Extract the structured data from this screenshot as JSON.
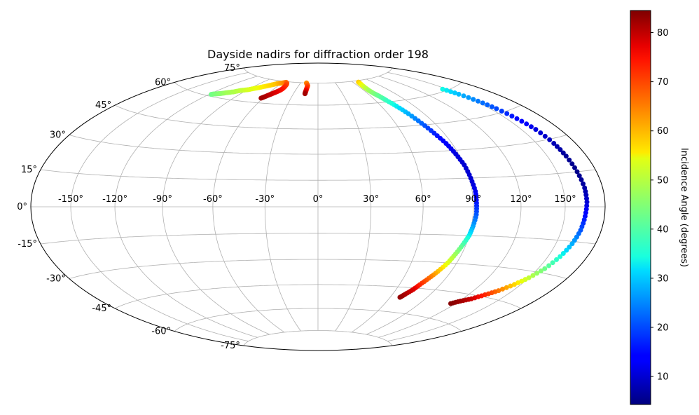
{
  "chart_data": {
    "type": "scatter",
    "projection": "hammer",
    "title": "Dayside nadirs for diffraction order 198",
    "xlabel": "",
    "ylabel": "",
    "grid": true,
    "longitude_ticks": [
      -150,
      -120,
      -90,
      -60,
      -30,
      0,
      30,
      60,
      90,
      120,
      150
    ],
    "longitude_tick_labels": [
      "-150°",
      "-120°",
      "-90°",
      "-60°",
      "-30°",
      "0°",
      "30°",
      "60°",
      "90°",
      "120°",
      "150°"
    ],
    "latitude_ticks": [
      -75,
      -60,
      -45,
      -30,
      -15,
      0,
      15,
      30,
      45,
      60,
      75
    ],
    "latitude_tick_labels": [
      "-75°",
      "-60°",
      "-45°",
      "-30°",
      "-15°",
      "0°",
      "15°",
      "30°",
      "45°",
      "60°",
      "75°"
    ],
    "colorbar": {
      "label": "Incidence Angle (degrees)",
      "colormap": "jet",
      "range": [
        4.3,
        84.5
      ],
      "ticks": [
        10,
        20,
        30,
        40,
        50,
        60,
        70,
        80
      ],
      "tick_labels": [
        "10",
        "20",
        "30",
        "40",
        "50",
        "60",
        "70",
        "80"
      ]
    },
    "series": [
      {
        "points": [
          [
            -118,
            61,
            43
          ],
          [
            -116,
            61.5,
            44
          ],
          [
            -113,
            62,
            45
          ],
          [
            -110,
            62.5,
            46
          ],
          [
            -106,
            63.5,
            48
          ],
          [
            -101,
            64.5,
            49
          ],
          [
            -96,
            66,
            51
          ],
          [
            -90,
            67,
            53
          ],
          [
            -84,
            68.5,
            55
          ],
          [
            -78,
            70,
            57
          ],
          [
            -72,
            71.5,
            59
          ],
          [
            -66,
            73,
            61
          ],
          [
            -62,
            73.5,
            63
          ],
          [
            -58,
            74,
            65
          ],
          [
            -55,
            74.5,
            67
          ],
          [
            -52,
            74,
            69
          ],
          [
            -50,
            73,
            71
          ],
          [
            -49,
            71.5,
            73
          ],
          [
            -49,
            70,
            75
          ],
          [
            -50,
            69,
            76
          ],
          [
            -52,
            68,
            77
          ],
          [
            -54,
            67,
            78
          ],
          [
            -56,
            66,
            79
          ],
          [
            -58,
            65,
            80
          ],
          [
            -60,
            64,
            81
          ],
          [
            -62,
            63,
            82
          ]
        ]
      },
      {
        "points": [
          [
            -20,
            75,
            65
          ],
          [
            -19,
            74.5,
            66
          ],
          [
            -18,
            74,
            67
          ],
          [
            -17,
            73.5,
            68
          ],
          [
            -16,
            73,
            70
          ],
          [
            -16,
            72,
            72
          ],
          [
            -16,
            71,
            74
          ],
          [
            -16,
            70,
            76
          ],
          [
            -16,
            69,
            78
          ],
          [
            -16,
            68,
            80
          ],
          [
            -16,
            67.5,
            82
          ]
        ]
      },
      {
        "points": [
          [
            69,
            74,
            60
          ],
          [
            67,
            72,
            56
          ],
          [
            66,
            70,
            52
          ],
          [
            66,
            68,
            48
          ],
          [
            67,
            66,
            45
          ],
          [
            69,
            64,
            42
          ],
          [
            71,
            61,
            38
          ],
          [
            74,
            57,
            33
          ],
          [
            77,
            52,
            28
          ],
          [
            80,
            46,
            22
          ],
          [
            83,
            40,
            17
          ],
          [
            86,
            34,
            13
          ],
          [
            88,
            28,
            11
          ],
          [
            90,
            22,
            10
          ],
          [
            91,
            15,
            10
          ],
          [
            92,
            8,
            12
          ],
          [
            92,
            2,
            16
          ],
          [
            92,
            -4,
            21
          ],
          [
            91,
            -10,
            27
          ],
          [
            90,
            -15,
            33
          ],
          [
            88,
            -20,
            40
          ],
          [
            86,
            -25,
            47
          ],
          [
            84,
            -30,
            54
          ],
          [
            81,
            -35,
            61
          ],
          [
            78,
            -39,
            68
          ],
          [
            75,
            -43,
            74
          ],
          [
            73,
            -46,
            78
          ],
          [
            70,
            -49,
            81
          ],
          [
            68,
            -51,
            83
          ]
        ]
      },
      {
        "points": [
          [
            146,
            61,
            34
          ],
          [
            149,
            57,
            29
          ],
          [
            152,
            52,
            24
          ],
          [
            155,
            47,
            20
          ],
          [
            158,
            41,
            15
          ],
          [
            161,
            35,
            11
          ],
          [
            163,
            28,
            8
          ],
          [
            164,
            22,
            6
          ],
          [
            165,
            15,
            5
          ],
          [
            166,
            8,
            7
          ],
          [
            166,
            2,
            10
          ],
          [
            165,
            -4,
            15
          ],
          [
            164,
            -10,
            21
          ],
          [
            162,
            -16,
            28
          ],
          [
            159,
            -22,
            35
          ],
          [
            155,
            -28,
            43
          ],
          [
            150,
            -33,
            51
          ],
          [
            145,
            -37,
            59
          ],
          [
            139,
            -41,
            67
          ],
          [
            133,
            -44,
            74
          ],
          [
            127,
            -47,
            79
          ],
          [
            121,
            -49,
            82
          ],
          [
            116,
            -51,
            84
          ]
        ]
      }
    ]
  }
}
